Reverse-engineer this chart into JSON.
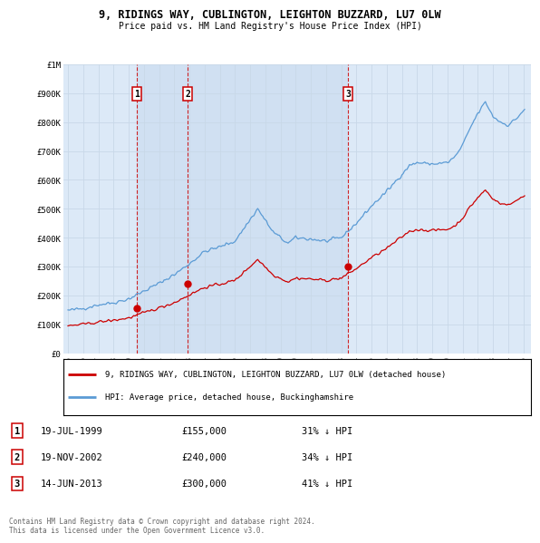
{
  "title": "9, RIDINGS WAY, CUBLINGTON, LEIGHTON BUZZARD, LU7 0LW",
  "subtitle": "Price paid vs. HM Land Registry's House Price Index (HPI)",
  "background_color": "#ffffff",
  "plot_background_color": "#dce9f7",
  "grid_color": "#c8d8e8",
  "hpi_line_color": "#5b9bd5",
  "price_line_color": "#cc0000",
  "vline_color": "#cc0000",
  "shade_color": "#ccddf0",
  "ylim": [
    0,
    1000000
  ],
  "yticks": [
    0,
    100000,
    200000,
    300000,
    400000,
    500000,
    600000,
    700000,
    800000,
    900000,
    1000000
  ],
  "ytick_labels": [
    "£0",
    "£100K",
    "£200K",
    "£300K",
    "£400K",
    "£500K",
    "£600K",
    "£700K",
    "£800K",
    "£900K",
    "£1M"
  ],
  "xlim_start": 1994.7,
  "xlim_end": 2025.5,
  "xticks": [
    1995,
    1996,
    1997,
    1998,
    1999,
    2000,
    2001,
    2002,
    2003,
    2004,
    2005,
    2006,
    2007,
    2008,
    2009,
    2010,
    2011,
    2012,
    2013,
    2014,
    2015,
    2016,
    2017,
    2018,
    2019,
    2020,
    2021,
    2022,
    2023,
    2024,
    2025
  ],
  "sales": [
    {
      "date_num": 1999.54,
      "price": 155000,
      "label": "1"
    },
    {
      "date_num": 2002.88,
      "price": 240000,
      "label": "2"
    },
    {
      "date_num": 2013.44,
      "price": 300000,
      "label": "3"
    }
  ],
  "table_rows": [
    {
      "num": "1",
      "date": "19-JUL-1999",
      "price": "£155,000",
      "note": "31% ↓ HPI"
    },
    {
      "num": "2",
      "date": "19-NOV-2002",
      "price": "£240,000",
      "note": "34% ↓ HPI"
    },
    {
      "num": "3",
      "date": "14-JUN-2013",
      "price": "£300,000",
      "note": "41% ↓ HPI"
    }
  ],
  "legend_entries": [
    {
      "label": "9, RIDINGS WAY, CUBLINGTON, LEIGHTON BUZZARD, LU7 0LW (detached house)",
      "color": "#cc0000"
    },
    {
      "label": "HPI: Average price, detached house, Buckinghamshire",
      "color": "#5b9bd5"
    }
  ],
  "footer_text": "Contains HM Land Registry data © Crown copyright and database right 2024.\nThis data is licensed under the Open Government Licence v3.0."
}
